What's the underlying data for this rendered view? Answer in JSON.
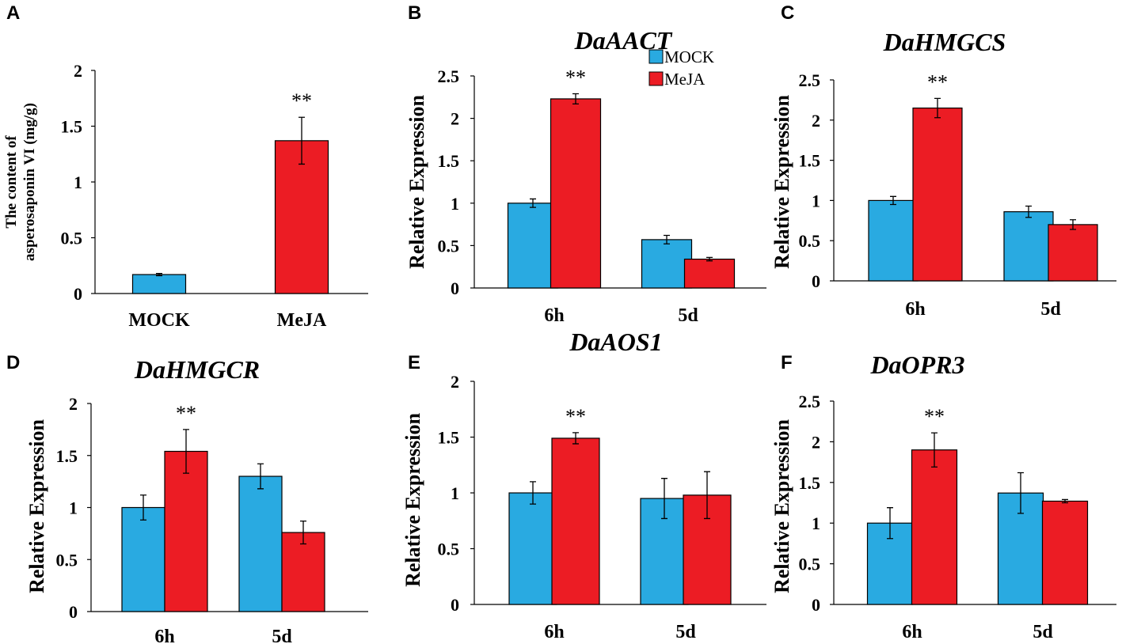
{
  "figure": {
    "colors": {
      "MOCK": "#29aae1",
      "MeJA": "#ec1c24"
    },
    "legend": [
      "MOCK",
      "MeJA"
    ]
  },
  "chart_data": [
    {
      "panel": "A",
      "type": "bar",
      "title": "",
      "ylabel_lines": [
        "The content of",
        "asperosaponin VI (mg/g)"
      ],
      "ylim": [
        0,
        2
      ],
      "ticks": [
        0,
        0.5,
        1,
        1.5,
        2
      ],
      "categories": [
        "MOCK",
        "MeJA"
      ],
      "series": [
        {
          "name": "value",
          "values": [
            0.17,
            1.37
          ],
          "errors": [
            0.01,
            0.21
          ],
          "colors": [
            "#29aae1",
            "#ec1c24"
          ]
        }
      ],
      "annotations": [
        {
          "category": 1,
          "series": 0,
          "text": "**"
        }
      ]
    },
    {
      "panel": "B",
      "type": "bar",
      "title": "DaAACT",
      "ylabel": "Relative Expression",
      "ylim": [
        0,
        2.5
      ],
      "ticks": [
        0,
        0.5,
        1,
        1.5,
        2,
        2.5
      ],
      "categories": [
        "6h",
        "5d"
      ],
      "series": [
        {
          "name": "MOCK",
          "values": [
            1.0,
            0.57
          ],
          "errors": [
            0.05,
            0.05
          ]
        },
        {
          "name": "MeJA",
          "values": [
            2.23,
            0.34
          ],
          "errors": [
            0.06,
            0.02
          ]
        }
      ],
      "annotations": [
        {
          "category": 0,
          "series": 1,
          "text": "**"
        }
      ],
      "legend": "top-right"
    },
    {
      "panel": "C",
      "type": "bar",
      "title": "DaHMGCS",
      "ylabel": "Relative Expression",
      "ylim": [
        0,
        2.5
      ],
      "ticks": [
        0,
        0.5,
        1,
        1.5,
        2,
        2.5
      ],
      "categories": [
        "6h",
        "5d"
      ],
      "series": [
        {
          "name": "MOCK",
          "values": [
            1.0,
            0.86
          ],
          "errors": [
            0.05,
            0.07
          ]
        },
        {
          "name": "MeJA",
          "values": [
            2.15,
            0.7
          ],
          "errors": [
            0.12,
            0.06
          ]
        }
      ],
      "annotations": [
        {
          "category": 0,
          "series": 1,
          "text": "**"
        }
      ]
    },
    {
      "panel": "D",
      "type": "bar",
      "title": "DaHMGCR",
      "ylabel": "Relative Expression",
      "ylim": [
        0,
        2
      ],
      "ticks": [
        0,
        0.5,
        1,
        1.5,
        2
      ],
      "categories": [
        "6h",
        "5d"
      ],
      "series": [
        {
          "name": "MOCK",
          "values": [
            1.0,
            1.3
          ],
          "errors": [
            0.12,
            0.12
          ]
        },
        {
          "name": "MeJA",
          "values": [
            1.54,
            0.76
          ],
          "errors": [
            0.21,
            0.11
          ]
        }
      ],
      "annotations": [
        {
          "category": 0,
          "series": 1,
          "text": "**"
        }
      ]
    },
    {
      "panel": "E",
      "type": "bar",
      "title": "DaAOS1",
      "ylabel": "Relative Expression",
      "ylim": [
        0,
        2
      ],
      "ticks": [
        0,
        0.5,
        1,
        1.5,
        2
      ],
      "categories": [
        "6h",
        "5d"
      ],
      "series": [
        {
          "name": "MOCK",
          "values": [
            1.0,
            0.95
          ],
          "errors": [
            0.1,
            0.18
          ]
        },
        {
          "name": "MeJA",
          "values": [
            1.49,
            0.98
          ],
          "errors": [
            0.05,
            0.21
          ]
        }
      ],
      "annotations": [
        {
          "category": 0,
          "series": 1,
          "text": "**"
        }
      ]
    },
    {
      "panel": "F",
      "type": "bar",
      "title": "DaOPR3",
      "ylabel": "Relative Expression",
      "ylim": [
        0,
        2.5
      ],
      "ticks": [
        0,
        0.5,
        1,
        1.5,
        2,
        2.5
      ],
      "categories": [
        "6h",
        "5d"
      ],
      "series": [
        {
          "name": "MOCK",
          "values": [
            1.0,
            1.37
          ],
          "errors": [
            0.19,
            0.25
          ]
        },
        {
          "name": "MeJA",
          "values": [
            1.9,
            1.27
          ],
          "errors": [
            0.21,
            0.02
          ]
        }
      ],
      "annotations": [
        {
          "category": 0,
          "series": 1,
          "text": "**"
        }
      ]
    }
  ]
}
